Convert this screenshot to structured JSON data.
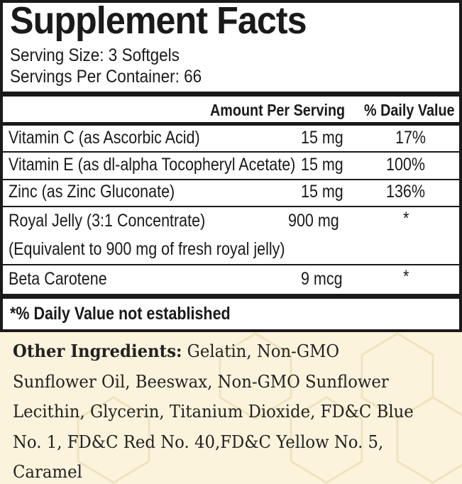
{
  "title": "Supplement Facts",
  "serving_size": "Serving Size: 3 Softgels",
  "servings_per_container": "Servings Per Container: 66",
  "header": {
    "amount": "Amount Per Serving",
    "daily_value": "% Daily Value"
  },
  "rows": [
    {
      "label": "Vitamin C (as Ascorbic Acid)",
      "amount": "15 mg",
      "dv": "17%"
    },
    {
      "label": "Vitamin E (as dl-alpha Tocopheryl Acetate)",
      "amount": "15 mg",
      "dv": "100%"
    },
    {
      "label": "Zinc (as Zinc Gluconate)",
      "amount": "15 mg",
      "dv": "136%"
    },
    {
      "label": "Royal Jelly (3:1 Concentrate)",
      "label2": "(Equivalent to 900 mg of fresh royal jelly)",
      "amount": "900 mg",
      "dv": "*"
    },
    {
      "label": "Beta Carotene",
      "amount": "9 mcg",
      "dv": "*"
    }
  ],
  "footnote": "*% Daily Value not established",
  "other_ingredients": {
    "heading": "Other Ingredients:",
    "text": " Gelatin, Non-GMO Sunflower Oil, Beeswax, Non-GMO Sunflower Lecithin, Glycerin, Titanium Dioxide, FD&C Blue No. 1, FD&C Red No. 40,FD&C Yellow No. 5, Caramel"
  },
  "colors": {
    "background": "#fbf3dc",
    "honeycomb": "#f1e6c4",
    "ink": "#1a1a1a"
  }
}
